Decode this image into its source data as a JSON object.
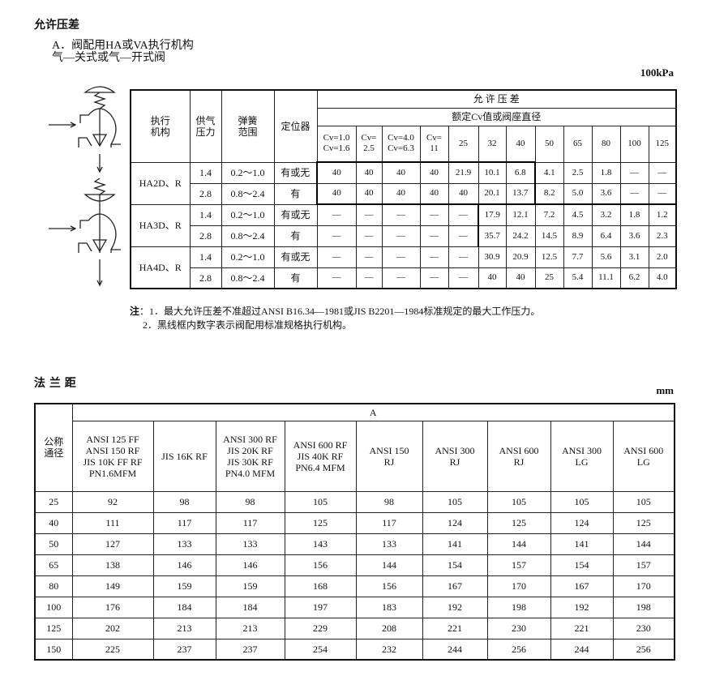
{
  "section1": {
    "title": "允许压差",
    "subtitle_line1": "A．阀配用HA或VA执行机构",
    "subtitle_line2": "气—关式或气—开式阀",
    "unit": "100kPa"
  },
  "table1": {
    "headers": {
      "actuator": "执行\n机构",
      "supply": "供气\n压力",
      "spring": "弹簧\n范围",
      "positioner": "定位器",
      "allowable": "允 许 压 差",
      "rated": "额定Cv值或阀座直径",
      "cv_columns": [
        "Cv=1.0\nCv=1.6",
        "Cv=\n2.5",
        "Cv=4.0\nCv=6.3",
        "Cv=\n11",
        "25",
        "32",
        "40",
        "50",
        "65",
        "80",
        "100",
        "125"
      ]
    },
    "groups": [
      {
        "actuator": "HA2D、R",
        "rows": [
          {
            "supply": "1.4",
            "spring": "0.2～1.0",
            "positioner": "有或无",
            "values": [
              "40",
              "40",
              "40",
              "40",
              "21.9",
              "10.1",
              "6.8",
              "4.1",
              "2.5",
              "1.8",
              "—",
              "—"
            ]
          },
          {
            "supply": "2.8",
            "spring": "0.8～2.4",
            "positioner": "有",
            "values": [
              "40",
              "40",
              "40",
              "40",
              "40",
              "20.1",
              "13.7",
              "8.2",
              "5.0",
              "3.6",
              "—",
              "—"
            ]
          }
        ]
      },
      {
        "actuator": "HA3D、R",
        "rows": [
          {
            "supply": "1.4",
            "spring": "0.2～1.0",
            "positioner": "有或无",
            "values": [
              "—",
              "—",
              "—",
              "—",
              "—",
              "17.9",
              "12.1",
              "7.2",
              "4.5",
              "3.2",
              "1.8",
              "1.2"
            ]
          },
          {
            "supply": "2.8",
            "spring": "0.8～2.4",
            "positioner": "有",
            "values": [
              "—",
              "—",
              "—",
              "—",
              "—",
              "35.7",
              "24.2",
              "14.5",
              "8.9",
              "6.4",
              "3.6",
              "2.3"
            ]
          }
        ]
      },
      {
        "actuator": "HA4D、R",
        "rows": [
          {
            "supply": "1.4",
            "spring": "0.2～1.0",
            "positioner": "有或无",
            "values": [
              "—",
              "—",
              "—",
              "—",
              "—",
              "30.9",
              "20.9",
              "12.5",
              "7.7",
              "5.6",
              "3.1",
              "2.0"
            ]
          },
          {
            "supply": "2.8",
            "spring": "0.8～2.4",
            "positioner": "有",
            "values": [
              "—",
              "—",
              "—",
              "—",
              "—",
              "40",
              "40",
              "25",
              "5.4",
              "11.1",
              "6.2",
              "4.0"
            ]
          }
        ]
      }
    ]
  },
  "notes": {
    "label": "注",
    "items": [
      "1．最大允许压差不准超过ANSI  B16.34—1981或JIS  B2201—1984标准规定的最大工作压力。",
      "2．黑线框内数字表示阀配用标准规格执行机构。"
    ]
  },
  "section2": {
    "title": "法 兰 距",
    "unit": "mm"
  },
  "table2": {
    "row_header": "公称\n通径",
    "group_header": "A",
    "columns": [
      "ANSI 125 FF\nANSI 150 RF\nJIS 10K FF RF\nPN1.6MFM",
      "JIS 16K RF",
      "ANSI 300 RF\nJIS 20K RF\nJIS 30K RF\nPN4.0 MFM",
      "ANSI 600 RF\nJIS 40K RF\nPN6.4 MFM",
      "ANSI 150\nRJ",
      "ANSI 300\nRJ",
      "ANSI 600\nRJ",
      "ANSI 300\nLG",
      "ANSI 600\nLG"
    ],
    "rows": [
      {
        "size": "25",
        "values": [
          "92",
          "98",
          "98",
          "105",
          "98",
          "105",
          "105",
          "105",
          "105"
        ]
      },
      {
        "size": "40",
        "values": [
          "111",
          "117",
          "117",
          "125",
          "117",
          "124",
          "125",
          "124",
          "125"
        ]
      },
      {
        "size": "50",
        "values": [
          "127",
          "133",
          "133",
          "143",
          "133",
          "141",
          "144",
          "141",
          "144"
        ]
      },
      {
        "size": "65",
        "values": [
          "138",
          "146",
          "146",
          "156",
          "144",
          "154",
          "157",
          "154",
          "157"
        ]
      },
      {
        "size": "80",
        "values": [
          "149",
          "159",
          "159",
          "168",
          "156",
          "167",
          "170",
          "167",
          "170"
        ]
      },
      {
        "size": "100",
        "values": [
          "176",
          "184",
          "184",
          "197",
          "183",
          "192",
          "198",
          "192",
          "198"
        ]
      },
      {
        "size": "125",
        "values": [
          "202",
          "213",
          "213",
          "229",
          "208",
          "221",
          "230",
          "221",
          "230"
        ]
      },
      {
        "size": "150",
        "values": [
          "225",
          "237",
          "237",
          "254",
          "232",
          "244",
          "256",
          "244",
          "256"
        ]
      }
    ]
  }
}
